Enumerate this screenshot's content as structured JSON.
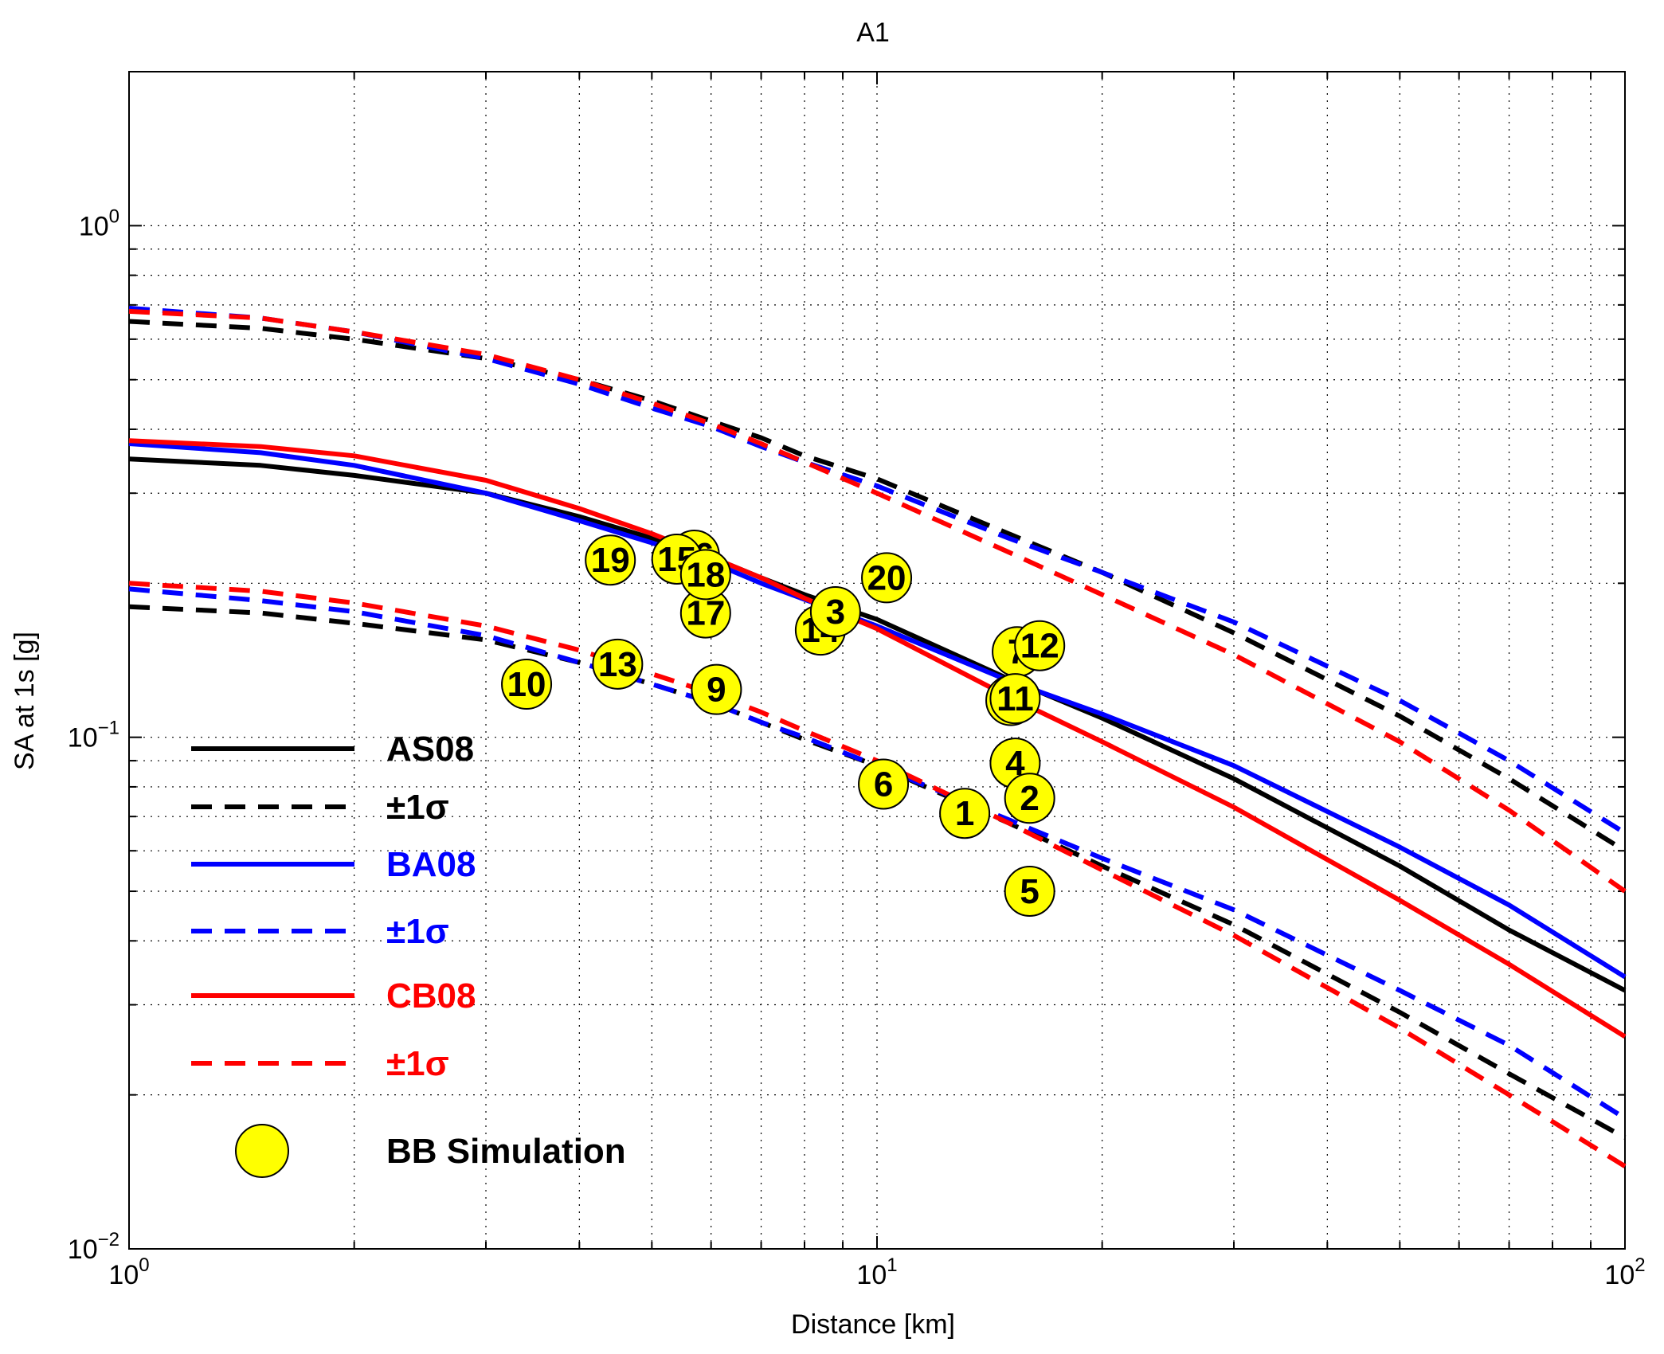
{
  "chart_data": {
    "type": "scatter",
    "title": "A1",
    "xlabel": "Distance [km]",
    "ylabel": "SA at 1s  [g]",
    "xscale": "log",
    "yscale": "log",
    "xlim": [
      1,
      100
    ],
    "ylim": [
      0.01,
      2
    ],
    "grid": true,
    "legend_position": "lower-left",
    "x_ticks": [
      {
        "value": 1,
        "base": "10",
        "exp": "0"
      },
      {
        "value": 10,
        "base": "10",
        "exp": "1"
      },
      {
        "value": 100,
        "base": "10",
        "exp": "2"
      }
    ],
    "y_ticks": [
      {
        "value": 0.01,
        "base": "10",
        "exp": "−2"
      },
      {
        "value": 0.1,
        "base": "10",
        "exp": "−1"
      },
      {
        "value": 1,
        "base": "10",
        "exp": "0"
      }
    ],
    "legend": [
      {
        "label": "AS08",
        "color": "#000000",
        "style": "solid"
      },
      {
        "label": "±1σ",
        "color": "#000000",
        "style": "dashed"
      },
      {
        "label": "BA08",
        "color": "#0000ff",
        "style": "solid"
      },
      {
        "label": "±1σ",
        "color": "#0000ff",
        "style": "dashed"
      },
      {
        "label": "CB08",
        "color": "#ff0000",
        "style": "solid"
      },
      {
        "label": "±1σ",
        "color": "#ff0000",
        "style": "dashed"
      },
      {
        "label": "BB Simulation",
        "color": "#ffff00",
        "style": "marker"
      }
    ],
    "series": [
      {
        "model": "AS08",
        "kind": "median",
        "color": "#000000",
        "dashed": false,
        "x": [
          1,
          1.5,
          2,
          3,
          4,
          5,
          6,
          7,
          8,
          10,
          15,
          20,
          30,
          50,
          70,
          100
        ],
        "y": [
          0.35,
          0.34,
          0.325,
          0.3,
          0.27,
          0.245,
          0.225,
          0.205,
          0.19,
          0.17,
          0.13,
          0.109,
          0.083,
          0.056,
          0.042,
          0.032
        ]
      },
      {
        "model": "AS08",
        "kind": "+1sigma",
        "color": "#000000",
        "dashed": true,
        "x": [
          1,
          1.5,
          2,
          3,
          4,
          5,
          6,
          7,
          8,
          10,
          15,
          20,
          30,
          50,
          70,
          100
        ],
        "y": [
          0.65,
          0.63,
          0.6,
          0.55,
          0.5,
          0.455,
          0.415,
          0.385,
          0.355,
          0.32,
          0.25,
          0.21,
          0.16,
          0.11,
          0.083,
          0.06
        ]
      },
      {
        "model": "AS08",
        "kind": "-1sigma",
        "color": "#000000",
        "dashed": true,
        "x": [
          1,
          1.5,
          2,
          3,
          4,
          5,
          6,
          7,
          8,
          10,
          15,
          20,
          30,
          50,
          70,
          100
        ],
        "y": [
          0.18,
          0.175,
          0.167,
          0.155,
          0.14,
          0.127,
          0.117,
          0.107,
          0.099,
          0.088,
          0.068,
          0.056,
          0.043,
          0.029,
          0.022,
          0.0165
        ]
      },
      {
        "model": "BA08",
        "kind": "median",
        "color": "#0000ff",
        "dashed": false,
        "x": [
          1,
          1.5,
          2,
          3,
          4,
          5,
          6,
          7,
          8,
          10,
          15,
          20,
          30,
          50,
          70,
          100
        ],
        "y": [
          0.375,
          0.36,
          0.34,
          0.3,
          0.265,
          0.24,
          0.22,
          0.2,
          0.186,
          0.165,
          0.129,
          0.111,
          0.088,
          0.061,
          0.047,
          0.034
        ]
      },
      {
        "model": "BA08",
        "kind": "+1sigma",
        "color": "#0000ff",
        "dashed": true,
        "x": [
          1,
          1.5,
          2,
          3,
          4,
          5,
          6,
          7,
          8,
          10,
          15,
          20,
          30,
          50,
          70,
          100
        ],
        "y": [
          0.69,
          0.66,
          0.62,
          0.55,
          0.49,
          0.44,
          0.405,
          0.37,
          0.345,
          0.31,
          0.245,
          0.21,
          0.168,
          0.118,
          0.09,
          0.065
        ]
      },
      {
        "model": "BA08",
        "kind": "-1sigma",
        "color": "#0000ff",
        "dashed": true,
        "x": [
          1,
          1.5,
          2,
          3,
          4,
          5,
          6,
          7,
          8,
          10,
          15,
          20,
          30,
          50,
          70,
          100
        ],
        "y": [
          0.195,
          0.185,
          0.176,
          0.158,
          0.14,
          0.127,
          0.117,
          0.107,
          0.1,
          0.088,
          0.069,
          0.058,
          0.046,
          0.032,
          0.025,
          0.018
        ]
      },
      {
        "model": "CB08",
        "kind": "median",
        "color": "#ff0000",
        "dashed": false,
        "x": [
          1,
          1.5,
          2,
          3,
          4,
          5,
          6,
          7,
          8,
          10,
          15,
          20,
          30,
          50,
          70,
          100
        ],
        "y": [
          0.38,
          0.37,
          0.355,
          0.318,
          0.28,
          0.25,
          0.225,
          0.205,
          0.187,
          0.163,
          0.12,
          0.098,
          0.073,
          0.048,
          0.036,
          0.026
        ]
      },
      {
        "model": "CB08",
        "kind": "+1sigma",
        "color": "#ff0000",
        "dashed": true,
        "x": [
          1,
          1.5,
          2,
          3,
          4,
          5,
          6,
          7,
          8,
          10,
          15,
          20,
          30,
          50,
          70,
          100
        ],
        "y": [
          0.68,
          0.66,
          0.62,
          0.56,
          0.5,
          0.45,
          0.41,
          0.375,
          0.345,
          0.3,
          0.23,
          0.19,
          0.145,
          0.098,
          0.072,
          0.05
        ]
      },
      {
        "model": "CB08",
        "kind": "-1sigma",
        "color": "#ff0000",
        "dashed": true,
        "x": [
          1,
          1.5,
          2,
          3,
          4,
          5,
          6,
          7,
          8,
          10,
          15,
          20,
          30,
          50,
          70,
          100
        ],
        "y": [
          0.2,
          0.193,
          0.183,
          0.165,
          0.148,
          0.133,
          0.122,
          0.112,
          0.103,
          0.09,
          0.068,
          0.055,
          0.041,
          0.027,
          0.02,
          0.0145
        ]
      }
    ],
    "points": [
      {
        "label": "19",
        "x": 4.4,
        "y": 0.222
      },
      {
        "label": "10",
        "x": 3.4,
        "y": 0.127
      },
      {
        "label": "13",
        "x": 4.5,
        "y": 0.139
      },
      {
        "label": "9",
        "x": 6.1,
        "y": 0.124
      },
      {
        "label": "17",
        "x": 5.9,
        "y": 0.175
      },
      {
        "label": "14",
        "x": 8.4,
        "y": 0.162
      },
      {
        "label": "3",
        "x": 8.8,
        "y": 0.176
      },
      {
        "label": "20",
        "x": 10.3,
        "y": 0.205
      },
      {
        "label": "16",
        "x": 5.7,
        "y": 0.227
      },
      {
        "label": "15",
        "x": 5.4,
        "y": 0.223
      },
      {
        "label": "18",
        "x": 5.9,
        "y": 0.208
      },
      {
        "label": "6",
        "x": 10.2,
        "y": 0.081
      },
      {
        "label": "1",
        "x": 13.1,
        "y": 0.071
      },
      {
        "label": "4",
        "x": 15.3,
        "y": 0.089
      },
      {
        "label": "2",
        "x": 16.0,
        "y": 0.076
      },
      {
        "label": "5",
        "x": 16.0,
        "y": 0.05
      },
      {
        "label": "7",
        "x": 15.4,
        "y": 0.147
      },
      {
        "label": "12",
        "x": 16.5,
        "y": 0.151
      },
      {
        "label": "8",
        "x": 15.1,
        "y": 0.118
      },
      {
        "label": "11",
        "x": 15.3,
        "y": 0.119
      }
    ]
  }
}
